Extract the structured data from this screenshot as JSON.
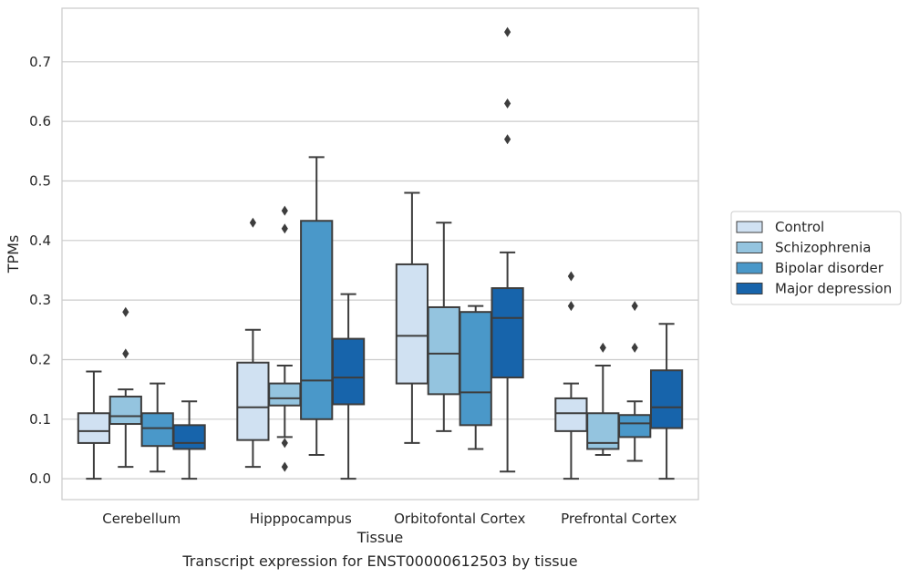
{
  "chart_data": {
    "type": "box",
    "title": "",
    "caption": "Transcript expression for ENST00000612503 by tissue",
    "xlabel": "Tissue",
    "ylabel": "TPMs",
    "ylim": [
      -0.035,
      0.79
    ],
    "yticks": [
      "0.0",
      "0.1",
      "0.2",
      "0.3",
      "0.4",
      "0.5",
      "0.6",
      "0.7"
    ],
    "ytick_values": [
      0.0,
      0.1,
      0.2,
      0.3,
      0.4,
      0.5,
      0.6,
      0.7
    ],
    "grid": true,
    "legend_position": "right",
    "categories": [
      "Cerebellum",
      "Hipppocampus",
      "Orbitofontal Cortex",
      "Prefrontal Cortex"
    ],
    "series": [
      {
        "name": "Control",
        "color": "#d0e1f2",
        "boxes": [
          {
            "whislo": 0.0,
            "q1": 0.06,
            "med": 0.08,
            "q3": 0.11,
            "whishi": 0.18,
            "fliers": []
          },
          {
            "whislo": 0.02,
            "q1": 0.065,
            "med": 0.12,
            "q3": 0.195,
            "whishi": 0.25,
            "fliers": [
              0.43
            ]
          },
          {
            "whislo": 0.06,
            "q1": 0.16,
            "med": 0.24,
            "q3": 0.36,
            "whishi": 0.48,
            "fliers": []
          },
          {
            "whislo": 0.0,
            "q1": 0.08,
            "med": 0.11,
            "q3": 0.135,
            "whishi": 0.16,
            "fliers": [
              0.29,
              0.34
            ]
          }
        ]
      },
      {
        "name": "Schizophrenia",
        "color": "#94c4df",
        "boxes": [
          {
            "whislo": 0.02,
            "q1": 0.092,
            "med": 0.105,
            "q3": 0.138,
            "whishi": 0.15,
            "fliers": [
              0.21,
              0.28
            ]
          },
          {
            "whislo": 0.07,
            "q1": 0.123,
            "med": 0.135,
            "q3": 0.16,
            "whishi": 0.19,
            "fliers": [
              0.02,
              0.06,
              0.42,
              0.45
            ]
          },
          {
            "whislo": 0.08,
            "q1": 0.142,
            "med": 0.21,
            "q3": 0.288,
            "whishi": 0.43,
            "fliers": []
          },
          {
            "whislo": 0.04,
            "q1": 0.05,
            "med": 0.06,
            "q3": 0.11,
            "whishi": 0.19,
            "fliers": [
              0.22
            ]
          }
        ]
      },
      {
        "name": "Bipolar disorder",
        "color": "#4a98c9",
        "boxes": [
          {
            "whislo": 0.012,
            "q1": 0.055,
            "med": 0.085,
            "q3": 0.11,
            "whishi": 0.16,
            "fliers": []
          },
          {
            "whislo": 0.04,
            "q1": 0.1,
            "med": 0.165,
            "q3": 0.433,
            "whishi": 0.54,
            "fliers": []
          },
          {
            "whislo": 0.05,
            "q1": 0.09,
            "med": 0.145,
            "q3": 0.28,
            "whishi": 0.29,
            "fliers": []
          },
          {
            "whislo": 0.03,
            "q1": 0.07,
            "med": 0.093,
            "q3": 0.107,
            "whishi": 0.13,
            "fliers": [
              0.22,
              0.29
            ]
          }
        ]
      },
      {
        "name": "Major depression",
        "color": "#1764ab",
        "boxes": [
          {
            "whislo": 0.0,
            "q1": 0.05,
            "med": 0.06,
            "q3": 0.09,
            "whishi": 0.13,
            "fliers": []
          },
          {
            "whislo": 0.0,
            "q1": 0.125,
            "med": 0.17,
            "q3": 0.235,
            "whishi": 0.31,
            "fliers": []
          },
          {
            "whislo": 0.012,
            "q1": 0.17,
            "med": 0.27,
            "q3": 0.32,
            "whishi": 0.38,
            "fliers": [
              0.57,
              0.63,
              0.75
            ]
          },
          {
            "whislo": 0.0,
            "q1": 0.085,
            "med": 0.12,
            "q3": 0.182,
            "whishi": 0.26,
            "fliers": []
          }
        ]
      }
    ]
  }
}
